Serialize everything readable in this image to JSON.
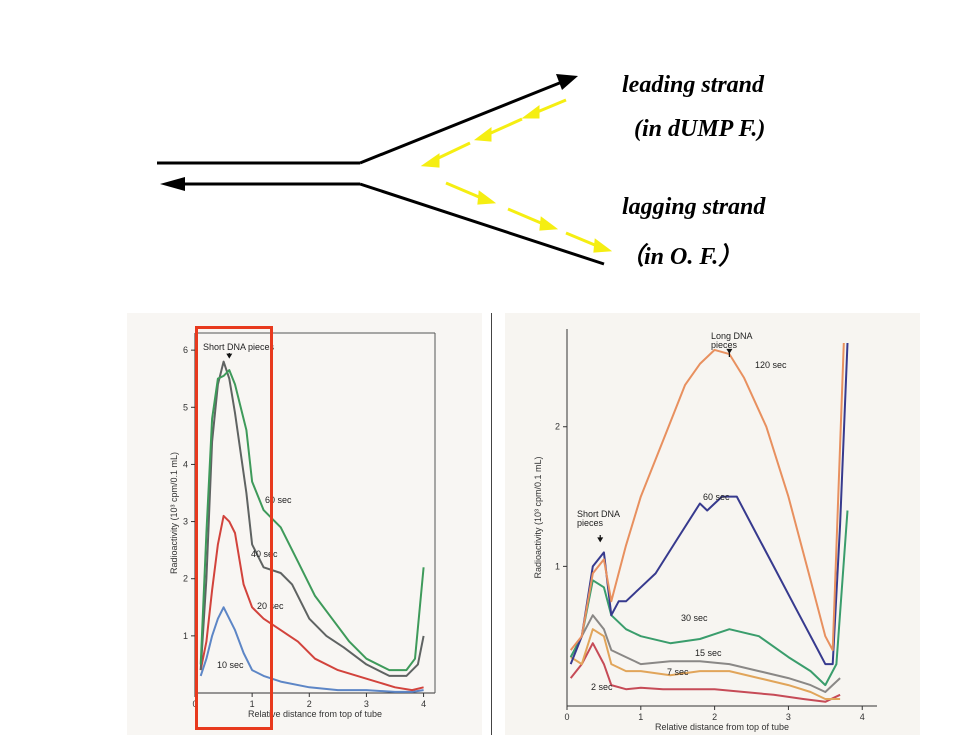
{
  "diagram": {
    "leading_label_1": "leading strand",
    "leading_label_2": "(in dUMP F.)",
    "lagging_label_1": "lagging strand",
    "lagging_label_2": "（in O. F.）",
    "strand_color": "#000000",
    "okazaki_color": "#f5ee12"
  },
  "chart_data": [
    {
      "type": "line",
      "xlabel": "Relative distance from top of tube",
      "ylabel": "Radioactivity (10³ cpm/0.1 mL)",
      "xlim": [
        0,
        4.2
      ],
      "ylim": [
        0,
        6.3
      ],
      "x_ticks": [
        "0",
        "1",
        "2",
        "3",
        "4"
      ],
      "y_ticks": [
        "1",
        "2",
        "3",
        "4",
        "5",
        "6"
      ],
      "annotations": [
        {
          "text": "Short DNA pieces",
          "x": 0.6,
          "y": 5.8
        }
      ],
      "series": [
        {
          "name": "10 sec",
          "color": "#5d86c6",
          "x": [
            0.1,
            0.2,
            0.3,
            0.4,
            0.5,
            0.6,
            0.7,
            0.85,
            1.0,
            1.2,
            1.5,
            2.0,
            2.5,
            3.0,
            3.5,
            3.8,
            4.0
          ],
          "y": [
            0.3,
            0.6,
            1.0,
            1.3,
            1.5,
            1.3,
            1.1,
            0.7,
            0.4,
            0.3,
            0.2,
            0.1,
            0.05,
            0.05,
            0.02,
            0.02,
            0.05
          ]
        },
        {
          "name": "20 sec",
          "color": "#d2433c",
          "x": [
            0.1,
            0.2,
            0.3,
            0.4,
            0.5,
            0.6,
            0.7,
            0.85,
            1.0,
            1.2,
            1.5,
            1.8,
            2.1,
            2.5,
            3.0,
            3.5,
            3.8,
            4.0
          ],
          "y": [
            0.4,
            0.9,
            1.8,
            2.6,
            3.1,
            3.0,
            2.8,
            1.9,
            1.5,
            1.3,
            1.1,
            0.9,
            0.6,
            0.4,
            0.25,
            0.1,
            0.05,
            0.1
          ]
        },
        {
          "name": "40 sec",
          "color": "#5f6362",
          "x": [
            0.1,
            0.2,
            0.3,
            0.4,
            0.5,
            0.6,
            0.7,
            0.9,
            1.0,
            1.2,
            1.5,
            1.7,
            2.0,
            2.3,
            2.6,
            3.0,
            3.4,
            3.7,
            3.9,
            4.0
          ],
          "y": [
            0.4,
            2.0,
            4.4,
            5.4,
            5.8,
            5.5,
            4.9,
            3.5,
            2.6,
            2.2,
            2.1,
            1.9,
            1.3,
            1.0,
            0.8,
            0.5,
            0.3,
            0.3,
            0.5,
            1.0
          ]
        },
        {
          "name": "60 sec",
          "color": "#3e9a5a",
          "x": [
            0.1,
            0.2,
            0.3,
            0.4,
            0.5,
            0.6,
            0.7,
            0.9,
            1.0,
            1.2,
            1.5,
            1.8,
            2.1,
            2.4,
            2.7,
            3.0,
            3.4,
            3.7,
            3.85,
            4.0
          ],
          "y": [
            0.5,
            2.8,
            4.8,
            5.5,
            5.55,
            5.65,
            5.4,
            4.6,
            3.7,
            3.2,
            2.9,
            2.3,
            1.7,
            1.3,
            0.9,
            0.6,
            0.4,
            0.4,
            0.6,
            2.2
          ]
        }
      ]
    },
    {
      "type": "line",
      "xlabel": "Relative distance from top of tube",
      "ylabel": "Radioactivity (10³ cpm/0.1 mL)",
      "xlim": [
        0,
        4.2
      ],
      "ylim": [
        0,
        2.7
      ],
      "x_ticks": [
        "0",
        "1",
        "2",
        "3",
        "4"
      ],
      "y_ticks": [
        "1",
        "2"
      ],
      "annotations": [
        {
          "text": "Long DNA pieces",
          "x": 2.2,
          "y": 2.5
        },
        {
          "text": "Short DNA pieces",
          "x": 0.45,
          "y": 1.15
        }
      ],
      "series": [
        {
          "name": "2 sec",
          "color": "#c64b57",
          "x": [
            0.05,
            0.2,
            0.35,
            0.5,
            0.6,
            0.8,
            1.0,
            1.3,
            1.6,
            2.0,
            2.4,
            2.8,
            3.2,
            3.5,
            3.7
          ],
          "y": [
            0.2,
            0.3,
            0.45,
            0.3,
            0.15,
            0.12,
            0.13,
            0.12,
            0.12,
            0.12,
            0.1,
            0.08,
            0.05,
            0.03,
            0.08
          ]
        },
        {
          "name": "7 sec",
          "color": "#e1a55a",
          "x": [
            0.05,
            0.2,
            0.35,
            0.5,
            0.6,
            0.8,
            1.0,
            1.4,
            1.8,
            2.2,
            2.6,
            3.0,
            3.3,
            3.5,
            3.7
          ],
          "y": [
            0.35,
            0.3,
            0.55,
            0.5,
            0.3,
            0.25,
            0.25,
            0.22,
            0.25,
            0.25,
            0.2,
            0.15,
            0.1,
            0.05,
            0.05
          ]
        },
        {
          "name": "15 sec",
          "color": "#8a8886",
          "x": [
            0.05,
            0.2,
            0.35,
            0.5,
            0.6,
            0.8,
            1.0,
            1.4,
            1.8,
            2.2,
            2.6,
            3.0,
            3.3,
            3.5,
            3.7
          ],
          "y": [
            0.35,
            0.5,
            0.65,
            0.55,
            0.4,
            0.35,
            0.3,
            0.32,
            0.32,
            0.3,
            0.25,
            0.2,
            0.15,
            0.1,
            0.2
          ]
        },
        {
          "name": "30 sec",
          "color": "#3a9d6c",
          "x": [
            0.05,
            0.2,
            0.35,
            0.5,
            0.6,
            0.8,
            1.0,
            1.4,
            1.8,
            2.2,
            2.6,
            3.0,
            3.3,
            3.5,
            3.65,
            3.8
          ],
          "y": [
            0.35,
            0.5,
            0.9,
            0.85,
            0.65,
            0.55,
            0.5,
            0.45,
            0.48,
            0.55,
            0.5,
            0.35,
            0.25,
            0.15,
            0.3,
            1.4
          ]
        },
        {
          "name": "60 sec",
          "color": "#373a8e",
          "x": [
            0.05,
            0.2,
            0.35,
            0.5,
            0.6,
            0.7,
            0.8,
            1.0,
            1.2,
            1.5,
            1.8,
            1.9,
            2.0,
            2.1,
            2.3,
            2.5,
            2.8,
            3.1,
            3.4,
            3.5,
            3.6,
            3.7,
            3.8
          ],
          "y": [
            0.3,
            0.5,
            1.0,
            1.1,
            0.65,
            0.75,
            0.75,
            0.85,
            0.95,
            1.2,
            1.45,
            1.4,
            1.45,
            1.5,
            1.5,
            1.3,
            1.0,
            0.7,
            0.4,
            0.3,
            0.3,
            1.3,
            2.6
          ]
        },
        {
          "name": "120 sec",
          "color": "#e8905f",
          "x": [
            0.05,
            0.2,
            0.35,
            0.5,
            0.6,
            0.8,
            1.0,
            1.3,
            1.6,
            1.8,
            2.0,
            2.2,
            2.4,
            2.7,
            3.0,
            3.3,
            3.5,
            3.6,
            3.75
          ],
          "y": [
            0.4,
            0.5,
            0.95,
            1.05,
            0.75,
            1.15,
            1.5,
            1.9,
            2.3,
            2.45,
            2.55,
            2.52,
            2.35,
            2.0,
            1.5,
            0.9,
            0.5,
            0.4,
            2.6
          ]
        }
      ]
    }
  ]
}
